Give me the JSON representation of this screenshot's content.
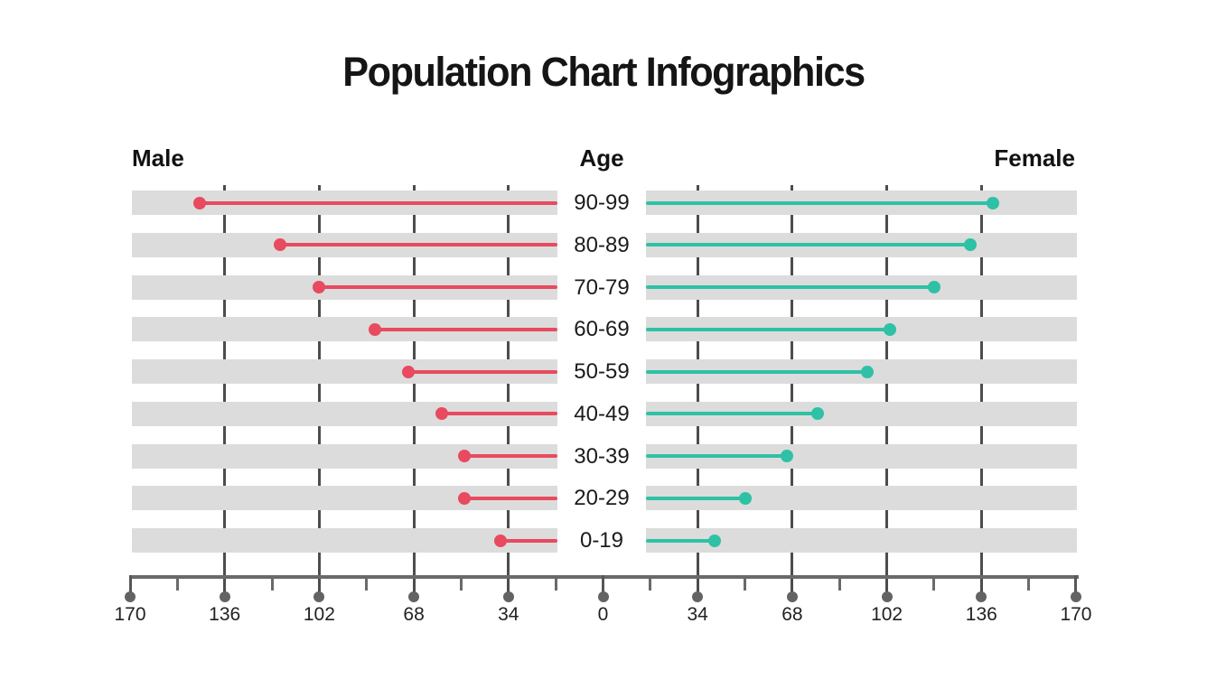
{
  "title": "Population Chart Infographics",
  "headers": {
    "male": "Male",
    "age": "Age",
    "female": "Female"
  },
  "colors": {
    "male": "#e84a5f",
    "female": "#2fc1a5",
    "band": "#dcdcdc",
    "gridline": "#4d4d4d",
    "axis": "#6a6a6a",
    "tick_dot": "#636363",
    "text": "#1c1c1c"
  },
  "chart_data": {
    "type": "bar",
    "subtype": "population-pyramid-lollipop",
    "title": "Population Chart Infographics",
    "categories": [
      "90-99",
      "80-89",
      "70-79",
      "60-69",
      "50-59",
      "40-49",
      "30-39",
      "20-29",
      "0-19"
    ],
    "series": [
      {
        "name": "Male",
        "side": "left",
        "color": "#e84a5f",
        "values": [
          145,
          116,
          102,
          82,
          70,
          58,
          50,
          50,
          37
        ]
      },
      {
        "name": "Female",
        "side": "right",
        "color": "#2fc1a5",
        "values": [
          140,
          132,
          119,
          103,
          95,
          77,
          66,
          51,
          40
        ]
      }
    ],
    "axis": {
      "tick_labels": [
        "170",
        "136",
        "102",
        "68",
        "34",
        "0",
        "34",
        "68",
        "102",
        "136",
        "170"
      ],
      "tick_values": [
        -170,
        -136,
        -102,
        -68,
        -34,
        0,
        34,
        68,
        102,
        136,
        170
      ],
      "minor_tick_step": 17,
      "gridline_values": [
        34,
        68,
        102,
        136
      ],
      "max": 170
    },
    "grid": true,
    "legend_position": "none"
  }
}
